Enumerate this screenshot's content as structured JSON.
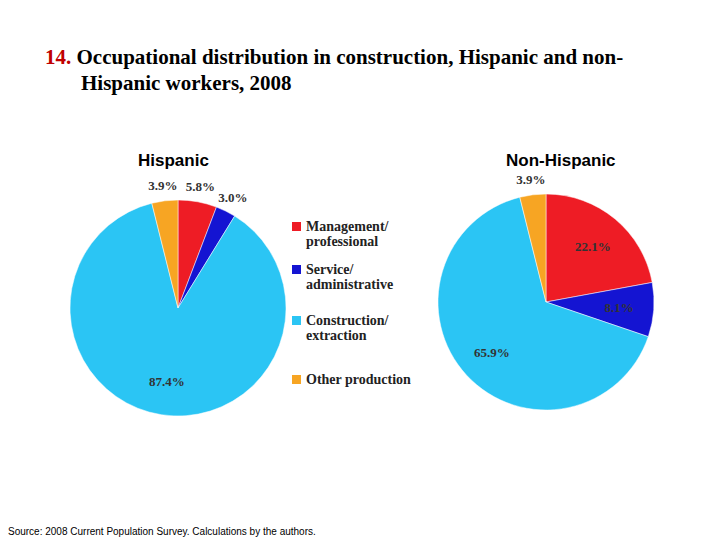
{
  "chart_data": {
    "type": "pie",
    "title": "14. Occupational distribution in construction, Hispanic and non-Hispanic workers, 2008",
    "categories": [
      "Management/ professional",
      "Service/ administrative",
      "Construction/ extraction",
      "Other production"
    ],
    "colors": [
      "#ee1c25",
      "#1414d2",
      "#2bc5f4",
      "#f7a523"
    ],
    "series": [
      {
        "name": "Hispanic",
        "values": [
          5.8,
          3.0,
          87.4,
          3.9
        ],
        "value_labels": [
          "5.8%",
          "3.0%",
          "87.4%",
          "3.9%"
        ]
      },
      {
        "name": "Non-Hispanic",
        "values": [
          22.1,
          8.1,
          65.9,
          3.9
        ],
        "value_labels": [
          "22.1%",
          "8.1%",
          "65.9%",
          "3.9%"
        ]
      }
    ],
    "data_labels": true,
    "legend": "center",
    "source": "Source: 2008 Current Population Survey. Calculations by the authors."
  }
}
